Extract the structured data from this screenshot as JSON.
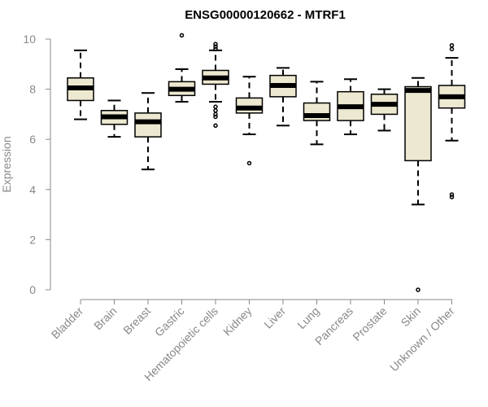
{
  "chart_data": {
    "type": "box",
    "title": "ENSG00000120662 - MTRF1",
    "xlabel": "",
    "ylabel": "Expression",
    "ylim": [
      0,
      10
    ],
    "yticks": [
      0,
      2,
      4,
      6,
      8,
      10
    ],
    "box_fill": "#ede8d0",
    "categories": [
      "Bladder",
      "Brain",
      "Breast",
      "Gastric",
      "Hematopoietic cells",
      "Kidney",
      "Liver",
      "Lung",
      "Pancreas",
      "Prostate",
      "Skin",
      "Unknown / Other"
    ],
    "boxes": [
      {
        "category": "Bladder",
        "whisker_low": 6.8,
        "q1": 7.55,
        "median": 8.05,
        "q3": 8.45,
        "whisker_high": 9.55,
        "outliers": []
      },
      {
        "category": "Brain",
        "whisker_low": 6.1,
        "q1": 6.6,
        "median": 6.9,
        "q3": 7.15,
        "whisker_high": 7.55,
        "outliers": []
      },
      {
        "category": "Breast",
        "whisker_low": 4.8,
        "q1": 6.1,
        "median": 6.7,
        "q3": 7.05,
        "whisker_high": 7.85,
        "outliers": []
      },
      {
        "category": "Gastric",
        "whisker_low": 7.5,
        "q1": 7.75,
        "median": 8.0,
        "q3": 8.3,
        "whisker_high": 8.8,
        "outliers": [
          10.15
        ]
      },
      {
        "category": "Hematopoietic cells",
        "whisker_low": 7.5,
        "q1": 8.2,
        "median": 8.45,
        "q3": 8.75,
        "whisker_high": 9.55,
        "outliers": [
          9.8,
          9.7,
          9.6,
          7.3,
          7.15,
          7.0,
          6.9,
          6.55
        ]
      },
      {
        "category": "Kidney",
        "whisker_low": 6.2,
        "q1": 7.05,
        "median": 7.25,
        "q3": 7.65,
        "whisker_high": 8.5,
        "outliers": [
          5.05
        ]
      },
      {
        "category": "Liver",
        "whisker_low": 6.55,
        "q1": 7.7,
        "median": 8.15,
        "q3": 8.55,
        "whisker_high": 8.85,
        "outliers": []
      },
      {
        "category": "Lung",
        "whisker_low": 5.8,
        "q1": 6.75,
        "median": 6.95,
        "q3": 7.45,
        "whisker_high": 8.3,
        "outliers": []
      },
      {
        "category": "Pancreas",
        "whisker_low": 6.2,
        "q1": 6.75,
        "median": 7.3,
        "q3": 7.9,
        "whisker_high": 8.4,
        "outliers": []
      },
      {
        "category": "Prostate",
        "whisker_low": 6.35,
        "q1": 7.0,
        "median": 7.4,
        "q3": 7.8,
        "whisker_high": 8.0,
        "outliers": []
      },
      {
        "category": "Skin",
        "whisker_low": 3.4,
        "q1": 5.15,
        "median": 7.95,
        "q3": 8.1,
        "whisker_high": 8.45,
        "outliers": [
          0.0
        ]
      },
      {
        "category": "Unknown / Other",
        "whisker_low": 5.95,
        "q1": 7.25,
        "median": 7.7,
        "q3": 8.15,
        "whisker_high": 9.25,
        "outliers": [
          9.75,
          9.6,
          3.8,
          3.7
        ]
      }
    ]
  }
}
